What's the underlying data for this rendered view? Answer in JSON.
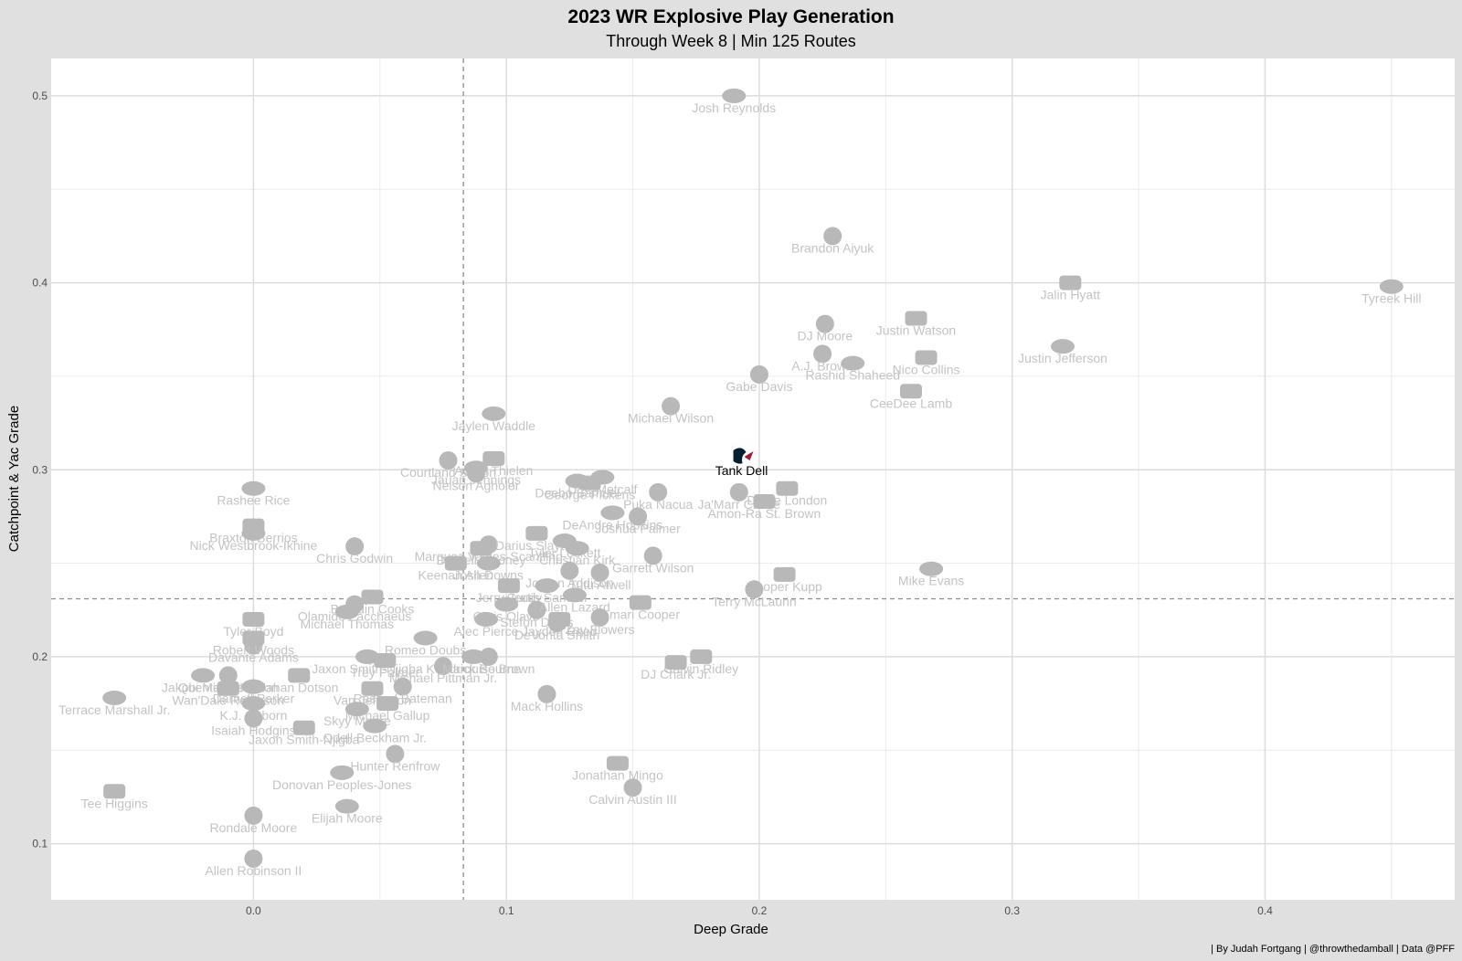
{
  "chart_data": {
    "type": "scatter",
    "title": "2023 WR Explosive Play Generation",
    "subtitle": "Through Week 8 | Min 125 Routes",
    "xlabel": "Deep Grade",
    "ylabel": "Catchpoint & Yac Grade",
    "caption": "| By Judah Fortgang | @throwthedamball | Data @PFF",
    "xlim": [
      -0.08,
      0.475
    ],
    "ylim": [
      0.07,
      0.52
    ],
    "x_ticks": [
      0.0,
      0.1,
      0.2,
      0.3,
      0.4
    ],
    "x_tick_labels": [
      "0.0",
      "0.1",
      "0.2",
      "0.3",
      "0.4"
    ],
    "y_ticks": [
      0.1,
      0.2,
      0.3,
      0.4,
      0.5
    ],
    "y_tick_labels": [
      "0.1",
      "0.2",
      "0.3",
      "0.4",
      "0.5"
    ],
    "x_minor_ticks": [
      0.05,
      0.15,
      0.25,
      0.35,
      0.45
    ],
    "y_minor_ticks": [
      0.15,
      0.25,
      0.35,
      0.45
    ],
    "vline": 0.083,
    "hline": 0.231,
    "grid": true,
    "highlight_color": "#03202f",
    "highlight_accent": "#a71930",
    "point_color": "#b8b8b8",
    "points": [
      {
        "name": "Josh Reynolds",
        "x": 0.19,
        "y": 0.5
      },
      {
        "name": "Brandon Aiyuk",
        "x": 0.229,
        "y": 0.425
      },
      {
        "name": "Jalin Hyatt",
        "x": 0.323,
        "y": 0.4
      },
      {
        "name": "Tyreek Hill",
        "x": 0.45,
        "y": 0.398
      },
      {
        "name": "DJ Moore",
        "x": 0.226,
        "y": 0.378
      },
      {
        "name": "Justin Watson",
        "x": 0.262,
        "y": 0.381
      },
      {
        "name": "Justin Jefferson",
        "x": 0.32,
        "y": 0.366
      },
      {
        "name": "A.J. Brown",
        "x": 0.225,
        "y": 0.362
      },
      {
        "name": "Nico Collins",
        "x": 0.266,
        "y": 0.36
      },
      {
        "name": "Rashid Shaheed",
        "x": 0.237,
        "y": 0.357
      },
      {
        "name": "Gabe Davis",
        "x": 0.2,
        "y": 0.351
      },
      {
        "name": "CeeDee Lamb",
        "x": 0.26,
        "y": 0.342
      },
      {
        "name": "Jaylen Waddle",
        "x": 0.095,
        "y": 0.33
      },
      {
        "name": "Michael Wilson",
        "x": 0.165,
        "y": 0.334
      },
      {
        "name": "Tank Dell",
        "x": 0.193,
        "y": 0.306,
        "highlight": true
      },
      {
        "name": "D.K. Metcalf",
        "x": 0.138,
        "y": 0.296
      },
      {
        "name": "Courtland Sutton",
        "x": 0.077,
        "y": 0.305
      },
      {
        "name": "Adam Thielen",
        "x": 0.095,
        "y": 0.306
      },
      {
        "name": "Jauan Jennings",
        "x": 0.088,
        "y": 0.301
      },
      {
        "name": "Nelson Agholor",
        "x": 0.088,
        "y": 0.298
      },
      {
        "name": "George Pickens",
        "x": 0.133,
        "y": 0.293
      },
      {
        "name": "Rashee Rice",
        "x": 0.0,
        "y": 0.29
      },
      {
        "name": "Ja'Marr Chase",
        "x": 0.192,
        "y": 0.288
      },
      {
        "name": "Drake London",
        "x": 0.211,
        "y": 0.29
      },
      {
        "name": "Deebo Samuel",
        "x": 0.128,
        "y": 0.294
      },
      {
        "name": "Puka Nacua",
        "x": 0.16,
        "y": 0.288
      },
      {
        "name": "Amon-Ra St. Brown",
        "x": 0.202,
        "y": 0.283
      },
      {
        "name": "DeAndre Hopkins",
        "x": 0.142,
        "y": 0.277
      },
      {
        "name": "Marquez Valdes-Scantling",
        "x": 0.093,
        "y": 0.26
      },
      {
        "name": "Braxton Berrios",
        "x": 0.0,
        "y": 0.27
      },
      {
        "name": "Nick Westbrook-Ikhine",
        "x": 0.0,
        "y": 0.266
      },
      {
        "name": "Joshua Palmer",
        "x": 0.152,
        "y": 0.275
      },
      {
        "name": "Darius Slayton",
        "x": 0.112,
        "y": 0.266
      },
      {
        "name": "Tyler Lockett",
        "x": 0.123,
        "y": 0.262
      },
      {
        "name": "Chris Godwin",
        "x": 0.04,
        "y": 0.259
      },
      {
        "name": "Darnell Mooney",
        "x": 0.09,
        "y": 0.258
      },
      {
        "name": "Christian Kirk",
        "x": 0.128,
        "y": 0.258
      },
      {
        "name": "Garrett Wilson",
        "x": 0.158,
        "y": 0.254
      },
      {
        "name": "Keenan Allen",
        "x": 0.08,
        "y": 0.25
      },
      {
        "name": "Josh Downs",
        "x": 0.093,
        "y": 0.25
      },
      {
        "name": "Jordan Addison",
        "x": 0.125,
        "y": 0.246
      },
      {
        "name": "Cooper Kupp",
        "x": 0.21,
        "y": 0.244
      },
      {
        "name": "Mike Evans",
        "x": 0.268,
        "y": 0.247
      },
      {
        "name": "Tutu Atwell",
        "x": 0.137,
        "y": 0.245
      },
      {
        "name": "Jerry Jeudy",
        "x": 0.101,
        "y": 0.238
      },
      {
        "name": "Curtis Samuel",
        "x": 0.116,
        "y": 0.238
      },
      {
        "name": "Terry McLaurin",
        "x": 0.198,
        "y": 0.236
      },
      {
        "name": "Brandin Cooks",
        "x": 0.047,
        "y": 0.232
      },
      {
        "name": "Chris Olave",
        "x": 0.1,
        "y": 0.228
      },
      {
        "name": "Stefon Diggs",
        "x": 0.112,
        "y": 0.225
      },
      {
        "name": "Amari Cooper",
        "x": 0.153,
        "y": 0.229
      },
      {
        "name": "Allen Lazard",
        "x": 0.127,
        "y": 0.233
      },
      {
        "name": "Olamide Zacchaeus",
        "x": 0.04,
        "y": 0.228
      },
      {
        "name": "Tyler Boyd",
        "x": 0.0,
        "y": 0.22
      },
      {
        "name": "Michael Thomas",
        "x": 0.037,
        "y": 0.224
      },
      {
        "name": "Zay Flowers",
        "x": 0.137,
        "y": 0.221
      },
      {
        "name": "Jayden Reed",
        "x": 0.121,
        "y": 0.22
      },
      {
        "name": "Alec Pierce",
        "x": 0.092,
        "y": 0.22
      },
      {
        "name": "Davante Adams",
        "x": 0.0,
        "y": 0.206
      },
      {
        "name": "Robert Woods",
        "x": 0.0,
        "y": 0.21
      },
      {
        "name": "Romeo Doubs",
        "x": 0.068,
        "y": 0.21
      },
      {
        "name": "DeVonta Smith",
        "x": 0.12,
        "y": 0.218
      },
      {
        "name": "Calvin Ridley",
        "x": 0.177,
        "y": 0.2
      },
      {
        "name": "Kendrick Bourne",
        "x": 0.087,
        "y": 0.2
      },
      {
        "name": "Quentin Johnston",
        "x": -0.01,
        "y": 0.19
      },
      {
        "name": "Jahan Dotson",
        "x": 0.018,
        "y": 0.19
      },
      {
        "name": "Jakobi Meyers",
        "x": -0.02,
        "y": 0.19
      },
      {
        "name": "Rondale Moore",
        "x": 0.0,
        "y": 0.115
      },
      {
        "name": "DJ Chark Jr.",
        "x": 0.167,
        "y": 0.197
      },
      {
        "name": "Jaxon Smith-Njigba",
        "x": 0.045,
        "y": 0.2
      },
      {
        "name": "Michael Pittman Jr.",
        "x": 0.075,
        "y": 0.195
      },
      {
        "name": "Trey Palmer",
        "x": 0.052,
        "y": 0.198
      },
      {
        "name": "Darnell Parker",
        "x": 0.0,
        "y": 0.184
      },
      {
        "name": "Marquise Brown",
        "x": 0.093,
        "y": 0.2
      },
      {
        "name": "Wan'Dale Robinson",
        "x": -0.01,
        "y": 0.183
      },
      {
        "name": "K.J. Osborn",
        "x": 0.0,
        "y": 0.175
      },
      {
        "name": "Rashod Bateman",
        "x": 0.059,
        "y": 0.184
      },
      {
        "name": "Van Jefferson",
        "x": 0.047,
        "y": 0.183
      },
      {
        "name": "Terrace Marshall Jr.",
        "x": -0.055,
        "y": 0.178
      },
      {
        "name": "Mack Hollins",
        "x": 0.116,
        "y": 0.18
      },
      {
        "name": "Michael Gallup",
        "x": 0.053,
        "y": 0.175
      },
      {
        "name": "Skyy Moore",
        "x": 0.041,
        "y": 0.172
      },
      {
        "name": "Isaiah Hodgins",
        "x": 0.0,
        "y": 0.167
      },
      {
        "name": "Jaxon Smith-Njigba",
        "x": 0.02,
        "y": 0.162
      },
      {
        "name": "Odell Beckham Jr.",
        "x": 0.048,
        "y": 0.163
      },
      {
        "name": "Hunter Renfrow",
        "x": 0.056,
        "y": 0.148
      },
      {
        "name": "Jonathan Mingo",
        "x": 0.144,
        "y": 0.143
      },
      {
        "name": "Donovan Peoples-Jones",
        "x": 0.035,
        "y": 0.138
      },
      {
        "name": "Calvin Austin III",
        "x": 0.15,
        "y": 0.13
      },
      {
        "name": "Tee Higgins",
        "x": -0.055,
        "y": 0.128
      },
      {
        "name": "Elijah Moore",
        "x": 0.037,
        "y": 0.12
      },
      {
        "name": "Allen Robinson II",
        "x": 0.0,
        "y": 0.092
      }
    ]
  }
}
